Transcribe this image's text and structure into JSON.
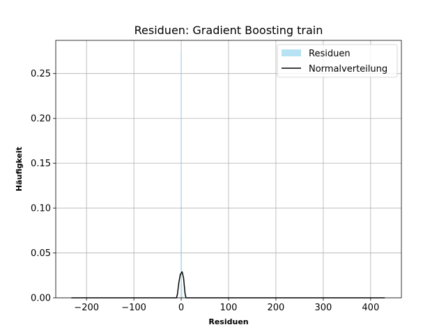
{
  "chart_data": {
    "type": "bar",
    "title": "Residuen: Gradient Boosting train",
    "xlabel": "Residuen",
    "ylabel": "Häufigkeit",
    "xlim": [
      -265,
      465
    ],
    "ylim": [
      0,
      0.287
    ],
    "grid": true,
    "legend_position": "top-right",
    "x_ticks": [
      -200,
      -100,
      0,
      100,
      200,
      300,
      400
    ],
    "x_tick_labels": [
      "−200",
      "−100",
      "0",
      "100",
      "200",
      "300",
      "400"
    ],
    "y_ticks": [
      0.0,
      0.05,
      0.1,
      0.15,
      0.2,
      0.25
    ],
    "y_tick_labels": [
      "0.00",
      "0.05",
      "0.10",
      "0.15",
      "0.20",
      "0.25"
    ],
    "series": [
      {
        "name": "Residuen",
        "kind": "histogram",
        "color": "#87ceeb",
        "opacity": 0.6,
        "bins": [
          {
            "x0": -2.0,
            "x1": -1.0,
            "density": 0.0
          },
          {
            "x0": -1.0,
            "x1": 0.0,
            "density": 0.274
          },
          {
            "x0": 0.0,
            "x1": 1.0,
            "density": 0.07
          },
          {
            "x0": 1.0,
            "x1": 2.0,
            "density": 0.015
          },
          {
            "x0": 2.0,
            "x1": 3.0,
            "density": 0.002
          }
        ]
      },
      {
        "name": "Normalverteilung",
        "kind": "line",
        "color": "#000000",
        "x": [
          -232,
          -10,
          -8,
          -5,
          -2,
          2,
          5,
          8,
          10,
          430
        ],
        "y": [
          0.0,
          0.0,
          0.004,
          0.017,
          0.026,
          0.029,
          0.022,
          0.005,
          0.0,
          0.0
        ]
      }
    ]
  }
}
